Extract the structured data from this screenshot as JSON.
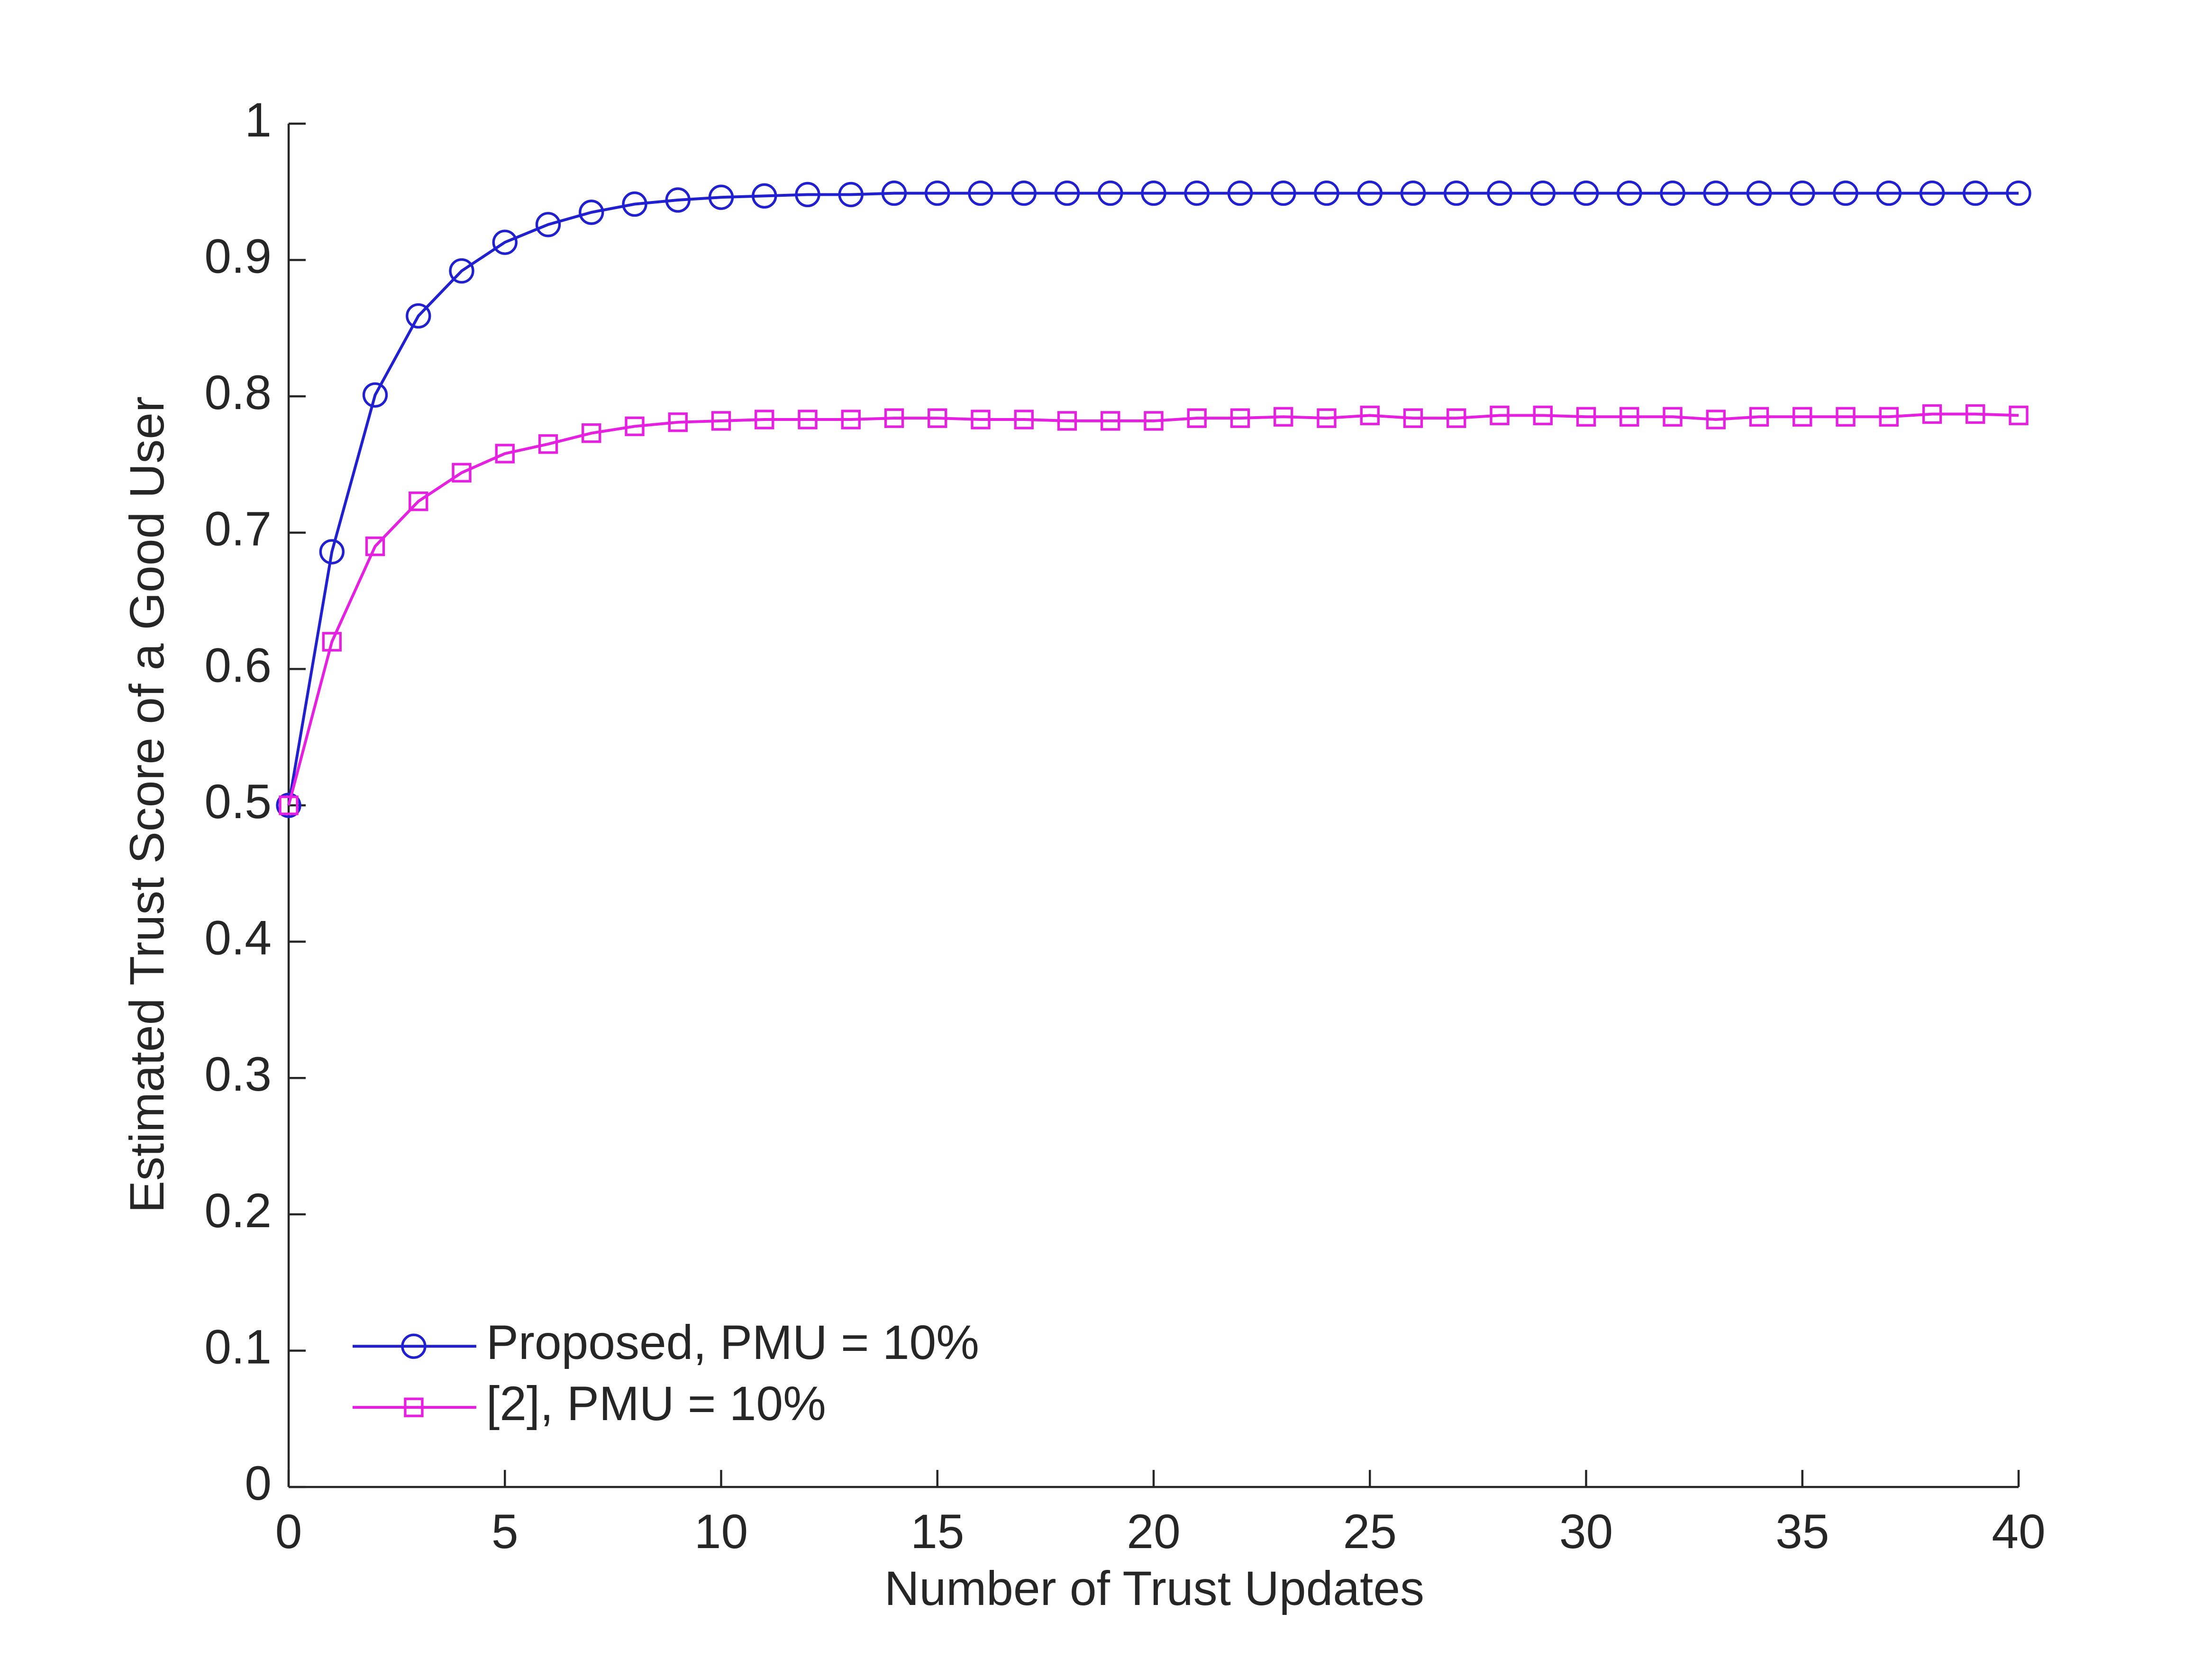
{
  "chart_data": {
    "type": "line",
    "xlabel": "Number of Trust Updates",
    "ylabel": "Estimated Trust Score of a Good User",
    "x": [
      0,
      1,
      2,
      3,
      4,
      5,
      6,
      7,
      8,
      9,
      10,
      11,
      12,
      13,
      14,
      15,
      16,
      17,
      18,
      19,
      20,
      21,
      22,
      23,
      24,
      25,
      26,
      27,
      28,
      29,
      30,
      31,
      32,
      33,
      34,
      35,
      36,
      37,
      38,
      39,
      40
    ],
    "series": [
      {
        "name": "Proposed, PMU = 10%",
        "color": "#2020d0",
        "marker": "circle",
        "values": [
          0.5,
          0.686,
          0.801,
          0.859,
          0.892,
          0.913,
          0.926,
          0.935,
          0.941,
          0.944,
          0.946,
          0.947,
          0.948,
          0.948,
          0.949,
          0.949,
          0.949,
          0.949,
          0.949,
          0.949,
          0.949,
          0.949,
          0.949,
          0.949,
          0.949,
          0.949,
          0.949,
          0.949,
          0.949,
          0.949,
          0.949,
          0.949,
          0.949,
          0.949,
          0.949,
          0.949,
          0.949,
          0.949,
          0.949,
          0.949,
          0.949
        ]
      },
      {
        "name": "[2], PMU = 10%",
        "color": "#e620e0",
        "marker": "square",
        "values": [
          0.5,
          0.62,
          0.69,
          0.723,
          0.744,
          0.758,
          0.765,
          0.773,
          0.778,
          0.781,
          0.782,
          0.783,
          0.783,
          0.783,
          0.784,
          0.784,
          0.783,
          0.783,
          0.782,
          0.782,
          0.782,
          0.784,
          0.784,
          0.785,
          0.784,
          0.786,
          0.784,
          0.784,
          0.786,
          0.786,
          0.785,
          0.785,
          0.785,
          0.783,
          0.785,
          0.785,
          0.785,
          0.785,
          0.787,
          0.787,
          0.786
        ]
      }
    ],
    "xlim": [
      0,
      40
    ],
    "xticks": [
      0,
      5,
      10,
      15,
      20,
      25,
      30,
      35,
      40
    ],
    "ylim": [
      0,
      1
    ],
    "yticks": [
      0,
      0.1,
      0.2,
      0.3,
      0.4,
      0.5,
      0.6,
      0.7,
      0.8,
      0.9,
      1
    ],
    "grid": false,
    "legend": "lower left"
  }
}
